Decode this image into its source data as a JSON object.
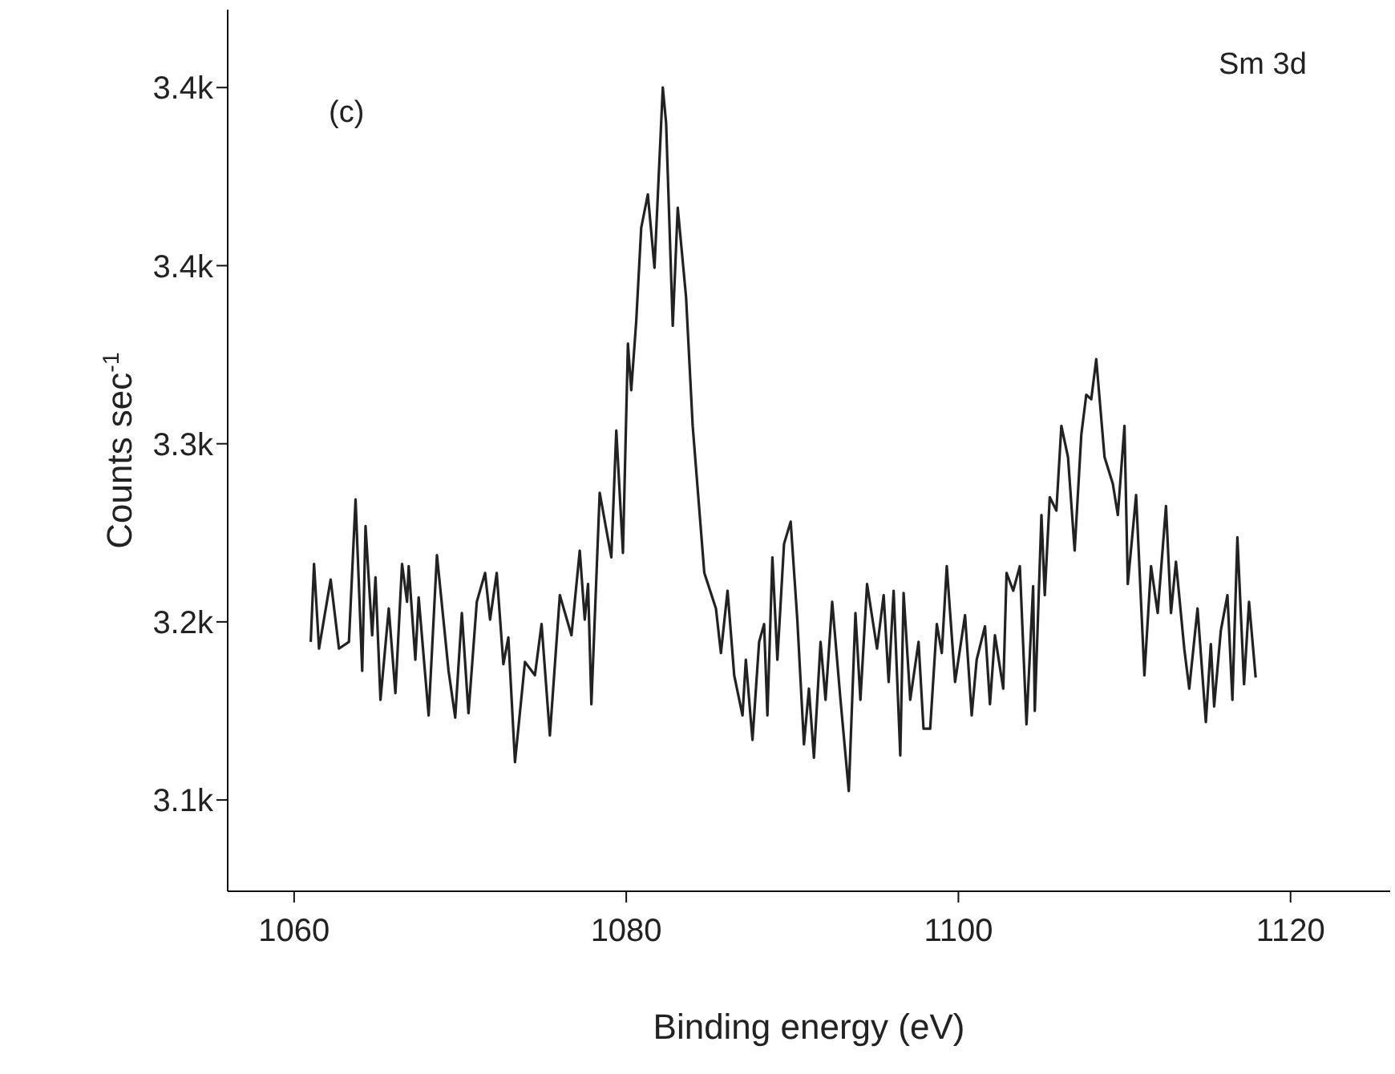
{
  "chart_data": {
    "type": "line",
    "xlabel": "Binding energy (eV)",
    "ylabel": "Counts sec$^{-1}$",
    "annotations": [
      "(c)",
      "Sm 3d"
    ],
    "xlim": [
      1056,
      1126
    ],
    "xticks": [
      1060,
      1080,
      1100,
      1120
    ],
    "ylim": [
      3079,
      3475
    ],
    "yticks": [
      {
        "value": 3120,
        "label": "3.1k"
      },
      {
        "value": 3200,
        "label": "3.2k"
      },
      {
        "value": 3280,
        "label": "3.3k"
      },
      {
        "value": 3360,
        "label": "3.4k"
      },
      {
        "value": 3440,
        "label": "3.4k"
      }
    ],
    "grid": false,
    "legend": false,
    "series": [
      {
        "color": "#222222",
        "x": [
          1061.0,
          1061.2,
          1061.5,
          1062.2,
          1062.7,
          1063.3,
          1063.7,
          1064.1,
          1064.3,
          1064.7,
          1064.9,
          1065.2,
          1065.7,
          1066.1,
          1066.5,
          1066.8,
          1066.9,
          1067.3,
          1067.5,
          1068.1,
          1068.6,
          1069.3,
          1069.7,
          1070.1,
          1070.5,
          1071.0,
          1071.5,
          1071.8,
          1072.2,
          1072.6,
          1072.9,
          1073.3,
          1073.9,
          1074.5,
          1074.9,
          1075.4,
          1076.0,
          1076.7,
          1077.2,
          1077.5,
          1077.7,
          1077.9,
          1078.4,
          1079.1,
          1079.4,
          1079.8,
          1080.1,
          1080.3,
          1080.6,
          1080.9,
          1081.3,
          1081.7,
          1082.2,
          1082.4,
          1082.8,
          1083.1,
          1083.6,
          1084.0,
          1084.7,
          1085.4,
          1085.7,
          1086.1,
          1086.5,
          1087.0,
          1087.2,
          1087.6,
          1088.0,
          1088.3,
          1088.5,
          1088.8,
          1089.1,
          1089.5,
          1089.9,
          1090.3,
          1090.7,
          1091.0,
          1091.3,
          1091.7,
          1092.0,
          1092.4,
          1092.9,
          1093.4,
          1093.8,
          1094.1,
          1094.5,
          1095.1,
          1095.5,
          1095.8,
          1096.1,
          1096.5,
          1096.7,
          1097.1,
          1097.6,
          1097.9,
          1098.3,
          1098.7,
          1099.0,
          1099.3,
          1099.8,
          1100.1,
          1100.4,
          1100.8,
          1101.1,
          1101.6,
          1101.9,
          1102.2,
          1102.7,
          1102.9,
          1103.3,
          1103.7,
          1104.1,
          1104.5,
          1104.6,
          1105.0,
          1105.2,
          1105.5,
          1105.9,
          1106.2,
          1106.6,
          1107.0,
          1107.4,
          1107.7,
          1108.0,
          1108.3,
          1108.8,
          1109.3,
          1109.6,
          1110.0,
          1110.2,
          1110.7,
          1111.2,
          1111.6,
          1112.0,
          1112.5,
          1112.8,
          1113.1,
          1113.6,
          1113.9,
          1114.4,
          1114.9,
          1115.2,
          1115.4,
          1115.8,
          1116.2,
          1116.5,
          1116.8,
          1117.2,
          1117.5,
          1117.9
        ],
        "values": [
          3191,
          3226,
          3188,
          3219,
          3188,
          3191,
          3255,
          3178,
          3243,
          3194,
          3220,
          3165,
          3206,
          3168,
          3226,
          3209,
          3225,
          3183,
          3211,
          3158,
          3230,
          3178,
          3157,
          3204,
          3159,
          3209,
          3222,
          3201,
          3222,
          3181,
          3193,
          3137,
          3182,
          3176,
          3199,
          3149,
          3212,
          3194,
          3232,
          3201,
          3217,
          3163,
          3258,
          3229,
          3286,
          3231,
          3325,
          3304,
          3335,
          3377,
          3392,
          3359,
          3440,
          3424,
          3333,
          3386,
          3346,
          3288,
          3222,
          3206,
          3186,
          3214,
          3176,
          3158,
          3183,
          3147,
          3191,
          3199,
          3158,
          3229,
          3183,
          3235,
          3245,
          3201,
          3145,
          3170,
          3139,
          3191,
          3165,
          3209,
          3165,
          3124,
          3204,
          3165,
          3217,
          3188,
          3212,
          3173,
          3214,
          3140,
          3213,
          3165,
          3191,
          3152,
          3152,
          3199,
          3186,
          3225,
          3173,
          3188,
          3203,
          3158,
          3183,
          3198,
          3163,
          3194,
          3170,
          3222,
          3214,
          3225,
          3154,
          3216,
          3160,
          3248,
          3212,
          3256,
          3250,
          3288,
          3274,
          3232,
          3284,
          3302,
          3300,
          3318,
          3274,
          3262,
          3248,
          3288,
          3217,
          3257,
          3176,
          3225,
          3204,
          3252,
          3204,
          3227,
          3188,
          3170,
          3206,
          3155,
          3190,
          3162,
          3196,
          3212,
          3165,
          3238,
          3172,
          3209,
          3175
        ]
      }
    ]
  }
}
